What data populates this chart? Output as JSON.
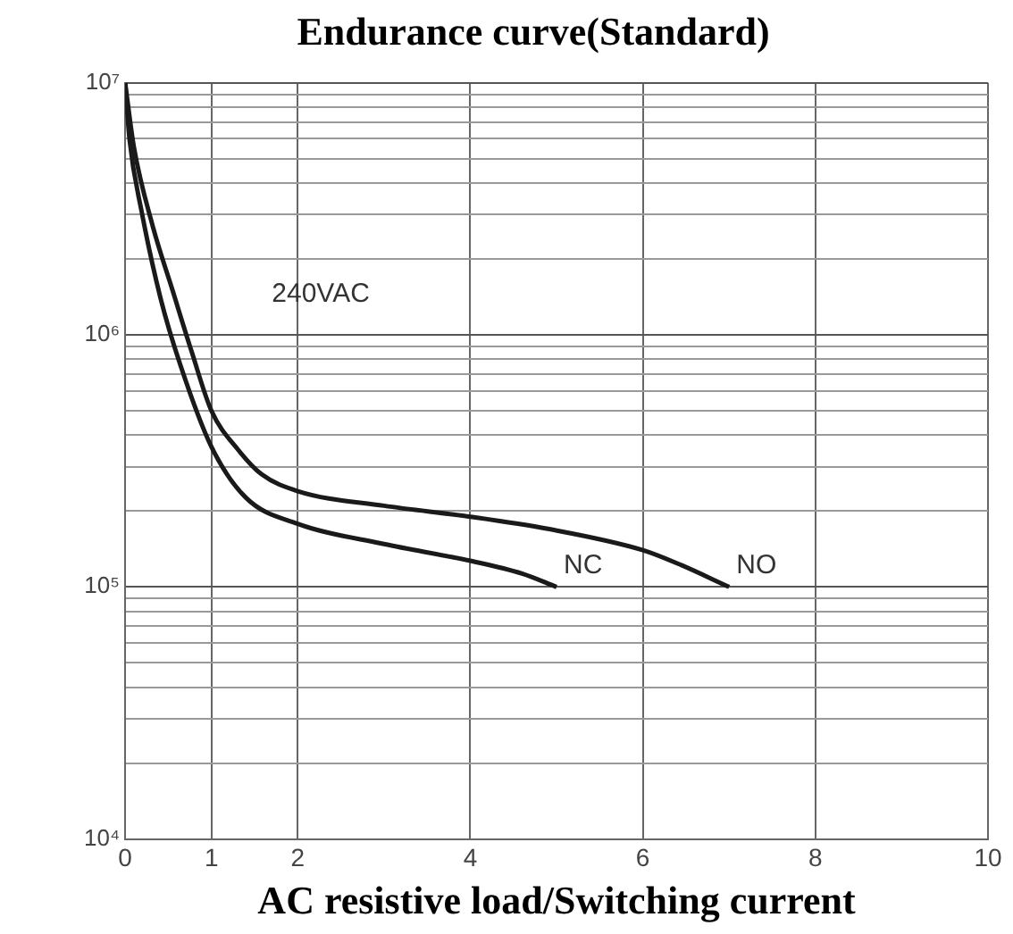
{
  "chart_data": {
    "type": "line",
    "title": "Endurance curve(Standard)",
    "xlabel": "AC resistive load/Switching current",
    "annotations": [
      "240VAC"
    ],
    "log": "y",
    "grid": true,
    "legend": false,
    "marker": "none",
    "line_style": "solid",
    "xlim": [
      0,
      10
    ],
    "xticks": [
      0,
      1,
      2,
      4,
      6,
      8,
      10
    ],
    "ylim": [
      10000,
      10000000
    ],
    "yticks": [
      {
        "value": 10000,
        "label": "10⁴"
      },
      {
        "value": 100000,
        "label": "10⁵"
      },
      {
        "value": 1000000,
        "label": "10⁶"
      },
      {
        "value": 10000000,
        "label": "10⁷"
      }
    ],
    "series": [
      {
        "name": "NO",
        "color": "#1a1a1a",
        "x": [
          0,
          0.1,
          0.32,
          0.55,
          0.77,
          1,
          1.31,
          1.58,
          2,
          3,
          4,
          4.9,
          6,
          6.4,
          7
        ],
        "values": [
          10000000,
          5600000,
          2700000,
          1500000,
          860000,
          500000,
          350000,
          280000,
          240000,
          210000,
          190000,
          170000,
          140000,
          124000,
          100000
        ]
      },
      {
        "name": "NC",
        "color": "#1a1a1a",
        "x": [
          0,
          0.05,
          0.19,
          0.41,
          0.64,
          1,
          1.4,
          2,
          3,
          4,
          4.6,
          5
        ],
        "values": [
          10000000,
          6000000,
          3100000,
          1400000,
          760000,
          360000,
          226000,
          178000,
          148000,
          127000,
          113000,
          100000
        ]
      }
    ]
  }
}
